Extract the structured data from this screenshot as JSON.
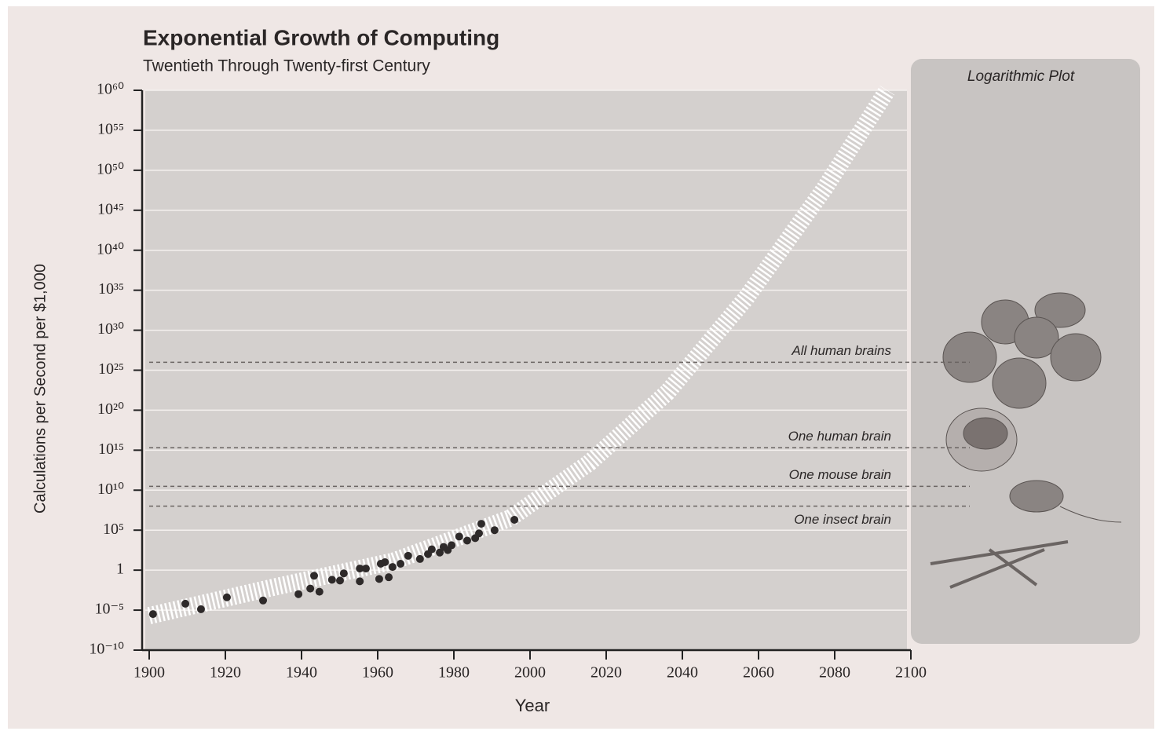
{
  "chart_data": {
    "type": "scatter",
    "title": "Exponential Growth of Computing",
    "subtitle": "Twentieth Through Twenty-first Century",
    "panel_label": "Logarithmic Plot",
    "x_label": "Year",
    "y_label": "Calculations per Second per $1,000",
    "ylog": true,
    "grid": true,
    "color": "#2e2a2a",
    "x": [
      1901,
      1909.5,
      1913.6,
      1920.4,
      1929.9,
      1939.2,
      1942.3,
      1943.3,
      1944.7,
      1948,
      1950.1,
      1951.1,
      1955.3,
      1955.3,
      1956.9,
      1960.4,
      1960.8,
      1962.9,
      1961.9,
      1963.9,
      1966,
      1968,
      1971.1,
      1973.2,
      1974.2,
      1976.3,
      1977.3,
      1978.4,
      1979.4,
      1981.4,
      1983.5,
      1985.6,
      1986.6,
      1987.2,
      1990.7,
      1995.9
    ],
    "values": [
      3.2e-06,
      6.3e-05,
      1.3e-05,
      0.0004,
      0.00016,
      0.001,
      0.005,
      0.2,
      0.002,
      0.063,
      0.05,
      0.4,
      0.04,
      1.6,
      1.6,
      0.08,
      6.3,
      0.13,
      10,
      2.5,
      6.3,
      63,
      25,
      100,
      400,
      160,
      800,
      320,
      1300,
      16000,
      5000,
      10000,
      40000,
      630000,
      100000,
      2000000
    ],
    "trend": {
      "x": [
        1900,
        1933,
        1964,
        1994.8,
        2015.5,
        2036,
        2056.7,
        2077.3,
        2093.8
      ],
      "values": [
        2e-06,
        0.008,
        12.6,
        3200000.0,
        25000000000000.0,
        1.6e+22,
        1e+34,
        5e+47,
        1e+60
      ]
    },
    "reference_lines": [
      {
        "label": "All human brains",
        "value": 1e+26
      },
      {
        "label": "One human brain",
        "value": 2000000000000000.0
      },
      {
        "label": "One mouse brain",
        "value": 30000000000.0
      },
      {
        "label": "One insect brain",
        "value": 100000000.0
      }
    ],
    "xlim": [
      1900,
      2100
    ],
    "xticks": [
      1900,
      1920,
      1940,
      1960,
      1980,
      2000,
      2020,
      2040,
      2060,
      2080,
      2100
    ],
    "ylim": [
      1e-10,
      1e+60
    ],
    "yticks": [
      {
        "value": 1e-10,
        "label": "10⁻¹⁰"
      },
      {
        "value": 1e-05,
        "label": "10⁻⁵"
      },
      1,
      {
        "value": 100000.0,
        "label": "10⁵"
      },
      {
        "value": 10000000000.0,
        "label": "10¹⁰"
      },
      {
        "value": 1000000000000000.0,
        "label": "10¹⁵"
      },
      {
        "value": 1e+20,
        "label": "10²⁰"
      },
      {
        "value": 1e+25,
        "label": "10²⁵"
      },
      {
        "value": 1e+30,
        "label": "10³⁰"
      },
      {
        "value": 1e+35,
        "label": "10³⁵"
      },
      {
        "value": 1e+40,
        "label": "10⁴⁰"
      },
      {
        "value": 1e+45,
        "label": "10⁴⁵"
      },
      {
        "value": 1e+50,
        "label": "10⁵⁰"
      },
      {
        "value": 1e+55,
        "label": "10⁵⁵"
      },
      {
        "value": 1e+60,
        "label": "10⁶⁰"
      }
    ]
  }
}
